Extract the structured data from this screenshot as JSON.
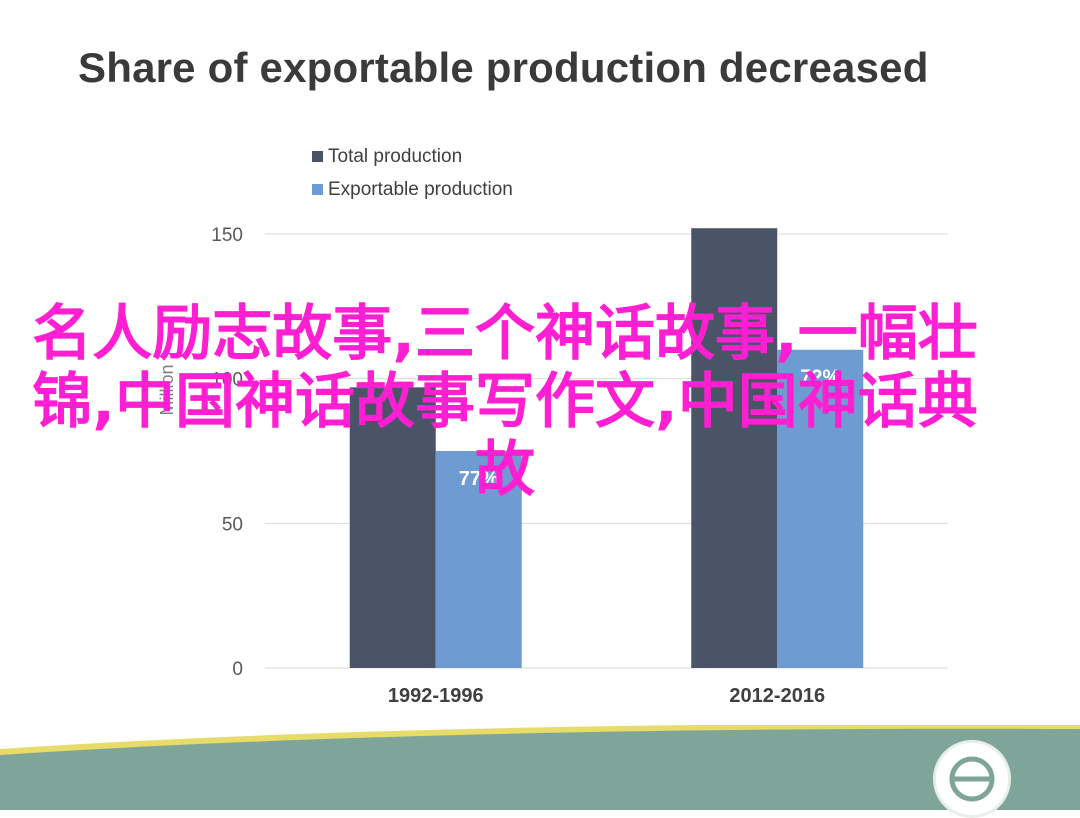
{
  "page": {
    "title": "Share of exportable production decreased",
    "overlay_text": "名人励志故事,三个神话故事,一幅壮锦,中国神话故事写作文,中国神话典故"
  },
  "colors": {
    "total": "#4a5466",
    "exportable": "#6f9bd3",
    "title": "#3a3a3a",
    "overlay": "#ff1fd2",
    "footer_band": "#7fa59a",
    "footer_stripe": "#e7dc6a"
  },
  "chart_data": {
    "type": "bar",
    "categories": [
      "1992-1996",
      "2012-2016"
    ],
    "series": [
      {
        "name": "Total production",
        "values": [
          97,
          152
        ]
      },
      {
        "name": "Exportable production",
        "values": [
          75,
          110
        ]
      }
    ],
    "data_labels": [
      "77%",
      "72%"
    ],
    "ylabel": "Million",
    "ylim": [
      0,
      150
    ],
    "yticks": [
      "0",
      "50",
      "100",
      "150"
    ],
    "grid": true,
    "legend_position": "top-left"
  }
}
